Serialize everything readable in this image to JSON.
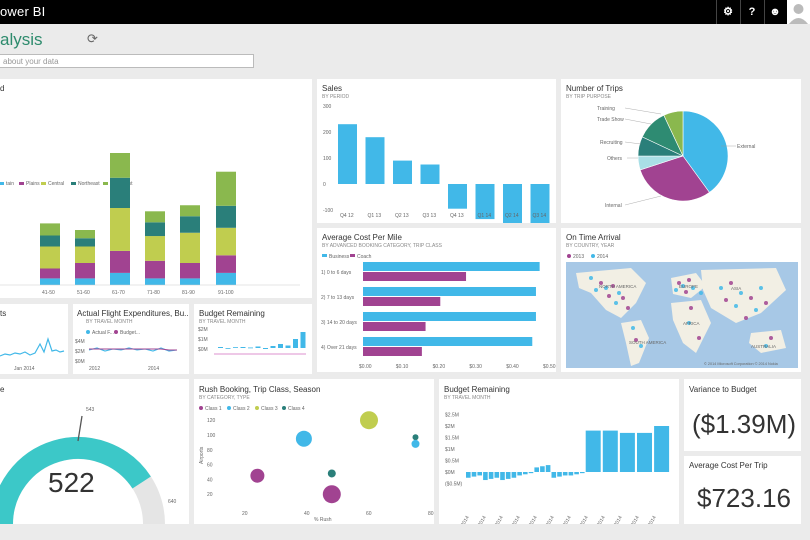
{
  "app": {
    "brand": "ower BI"
  },
  "topbar": {
    "icons": [
      "gear-icon",
      "help-icon",
      "smiley-icon",
      "user-avatar"
    ]
  },
  "dashboard": {
    "title": "alysis",
    "qa_placeholder": "about your data"
  },
  "colors": {
    "blue": "#41b8e8",
    "teal": "#2a7f7a",
    "green": "#8ab84e",
    "purple": "#a14391",
    "lime": "#c0cd4f",
    "lightgray": "#e5e5e5"
  },
  "tiles": {
    "stacked": {
      "title": "d",
      "legend": [
        "tain",
        "Plains",
        "Central",
        "Northeast",
        "Southeast"
      ],
      "categories": [
        "41-50",
        "51-60",
        "61-70",
        "71-80",
        "81-90",
        "91-100"
      ]
    },
    "sales": {
      "title": "Sales",
      "subtitle": "BY PERIOD",
      "yticks": [
        "300",
        "200",
        "100",
        "0",
        "-100",
        "-200"
      ],
      "xticks": [
        "Q4 12",
        "Q1 13",
        "Q2 13",
        "Q3 13",
        "Q4 13",
        "Q1 14",
        "Q2 14",
        "Q3 14"
      ]
    },
    "trips": {
      "title": "Number of Trips",
      "subtitle": "BY TRIP PURPOSE",
      "labels": [
        "Training",
        "Trade Show",
        "Recruiting",
        "Others",
        "External",
        "Internal"
      ]
    },
    "avgcost": {
      "title": "Average Cost Per Mile",
      "subtitle": "BY ADVANCED BOOKING CATEGORY, TRIP CLASS",
      "legend": [
        "Business",
        "Coach"
      ],
      "categories": [
        "1) 0 to 6 days",
        "2) 7 to 13 days",
        "3) 14 to 20 days",
        "4) Over 21 days"
      ],
      "xticks": [
        "$0.00",
        "$0.10",
        "$0.20",
        "$0.30",
        "$0.40",
        "$0.50"
      ]
    },
    "ontime": {
      "title": "On Time Arrival",
      "subtitle": "BY COUNTRY, YEAR",
      "legend": [
        "2013",
        "2014"
      ],
      "map_labels": [
        "NORTH AMERICA",
        "SOUTH AMERICA",
        "EUROPE",
        "AFRICA",
        "ASIA",
        "AUSTRALIA"
      ],
      "credit": "© 2014 Microsoft Corporation   © 2014 Nokia"
    },
    "ts": {
      "title": "ts",
      "xlabel": "Jan 2014"
    },
    "actual": {
      "title": "Actual Flight Expenditures, Bu...",
      "subtitle": "BY TRAVEL MONTH",
      "legend": [
        "Actual F...",
        "Budget..."
      ],
      "yticks": [
        "$4M",
        "$2M",
        "$0M"
      ],
      "xticks": [
        "2012",
        "2014"
      ]
    },
    "budget_small": {
      "title": "Budget Remaining",
      "subtitle": "BY TRAVEL MONTH",
      "yticks": [
        "$2M",
        "$1M",
        "$0M"
      ]
    },
    "gauge": {
      "title": "e",
      "value": "522",
      "target": "543",
      "max": "640",
      "fraction": 0.816
    },
    "rush": {
      "title": "Rush Booking, Trip Class, Season",
      "subtitle": "BY CATEGORY, TYPE",
      "legend": [
        "Class 1",
        "Class 2",
        "Class 3",
        "Class 4"
      ],
      "ylabel": "Airports",
      "xlabel": "% Rush",
      "yticks": [
        "120",
        "100",
        "80",
        "60",
        "40",
        "20"
      ],
      "xticks": [
        "20",
        "40",
        "60",
        "80"
      ]
    },
    "budget_big": {
      "title": "Budget Remaining",
      "subtitle": "BY TRAVEL MONTH",
      "yticks": [
        "$2.5M",
        "$2M",
        "$1.5M",
        "$1M",
        "$0.5M",
        "$0M",
        "($0.5M)"
      ],
      "xticks": [
        "1/1/2014",
        "2/1/2014",
        "3/1/2014",
        "4/1/2014",
        "5/1/2014",
        "6/1/2014",
        "7/1/2014",
        "8/1/2014",
        "9/1/2014",
        "10/1/2014",
        "11/1/2014",
        "12/1/2014"
      ]
    },
    "variance": {
      "title": "Variance to Budget",
      "value": "($1.39M)"
    },
    "avgtrip": {
      "title": "Average Cost Per Trip",
      "value": "$723.16"
    }
  },
  "chart_data": [
    {
      "type": "bar",
      "title": "Sales",
      "categories": [
        "Q4 12",
        "Q1 13",
        "Q2 13",
        "Q3 13",
        "Q4 13",
        "Q1 14",
        "Q2 14",
        "Q3 14"
      ],
      "values": [
        230,
        180,
        90,
        75,
        -95,
        -135,
        -160,
        -185
      ],
      "ylim": [
        -200,
        300
      ]
    },
    {
      "type": "bar",
      "title": "Average Cost Per Mile",
      "categories": [
        "1) 0 to 6 days",
        "2) 7 to 13 days",
        "3) 14 to 20 days",
        "4) Over 21 days"
      ],
      "series": [
        {
          "name": "Business",
          "values": [
            0.48,
            0.47,
            0.47,
            0.46
          ]
        },
        {
          "name": "Coach",
          "values": [
            0.28,
            0.21,
            0.17,
            0.16
          ]
        }
      ],
      "xlim": [
        0,
        0.5
      ]
    },
    {
      "type": "pie",
      "title": "Number of Trips",
      "categories": [
        "External",
        "Internal",
        "Others",
        "Recruiting",
        "Trade Show",
        "Training"
      ],
      "values": [
        40,
        30,
        5,
        7,
        11,
        7
      ]
    },
    {
      "type": "bar",
      "title": "Budget Remaining",
      "categories": [
        "1/1/2014",
        "2/1/2014",
        "3/1/2014",
        "4/1/2014",
        "5/1/2014",
        "6/1/2014",
        "7/1/2014",
        "8/1/2014",
        "9/1/2014",
        "10/1/2014",
        "11/1/2014",
        "12/1/2014"
      ],
      "values": [
        -0.2,
        -0.3,
        -0.3,
        -0.1,
        0.25,
        -0.2,
        -0.1,
        1.8,
        1.8,
        1.7,
        1.7,
        2.0
      ],
      "ylim": [
        -0.5,
        2.5
      ]
    },
    {
      "type": "scatter",
      "title": "Rush Booking, Trip Class, Season",
      "points": [
        {
          "x": 24,
          "y": 45,
          "r": 7,
          "c": "purple"
        },
        {
          "x": 39,
          "y": 95,
          "r": 8,
          "c": "blue"
        },
        {
          "x": 48,
          "y": 48,
          "r": 4,
          "c": "teal"
        },
        {
          "x": 48,
          "y": 20,
          "r": 9,
          "c": "purple"
        },
        {
          "x": 60,
          "y": 120,
          "r": 9,
          "c": "lime"
        },
        {
          "x": 75,
          "y": 97,
          "r": 3,
          "c": "teal"
        },
        {
          "x": 75,
          "y": 88,
          "r": 4,
          "c": "blue"
        }
      ],
      "xlim": [
        10,
        80
      ],
      "ylim": [
        0,
        130
      ]
    },
    {
      "type": "bar",
      "title": "d",
      "categories": [
        "41-50",
        "51-60",
        "61-70",
        "71-80",
        "81-90",
        "91-100"
      ],
      "series": [
        {
          "name": "tain",
          "values": [
            12,
            12,
            22,
            12,
            12,
            22
          ]
        },
        {
          "name": "Plains",
          "values": [
            18,
            28,
            40,
            32,
            28,
            32
          ]
        },
        {
          "name": "Central",
          "values": [
            40,
            30,
            78,
            45,
            55,
            50
          ]
        },
        {
          "name": "Northeast",
          "values": [
            20,
            15,
            55,
            25,
            30,
            40
          ]
        },
        {
          "name": "Southeast",
          "values": [
            22,
            15,
            45,
            20,
            20,
            62
          ]
        }
      ]
    }
  ]
}
